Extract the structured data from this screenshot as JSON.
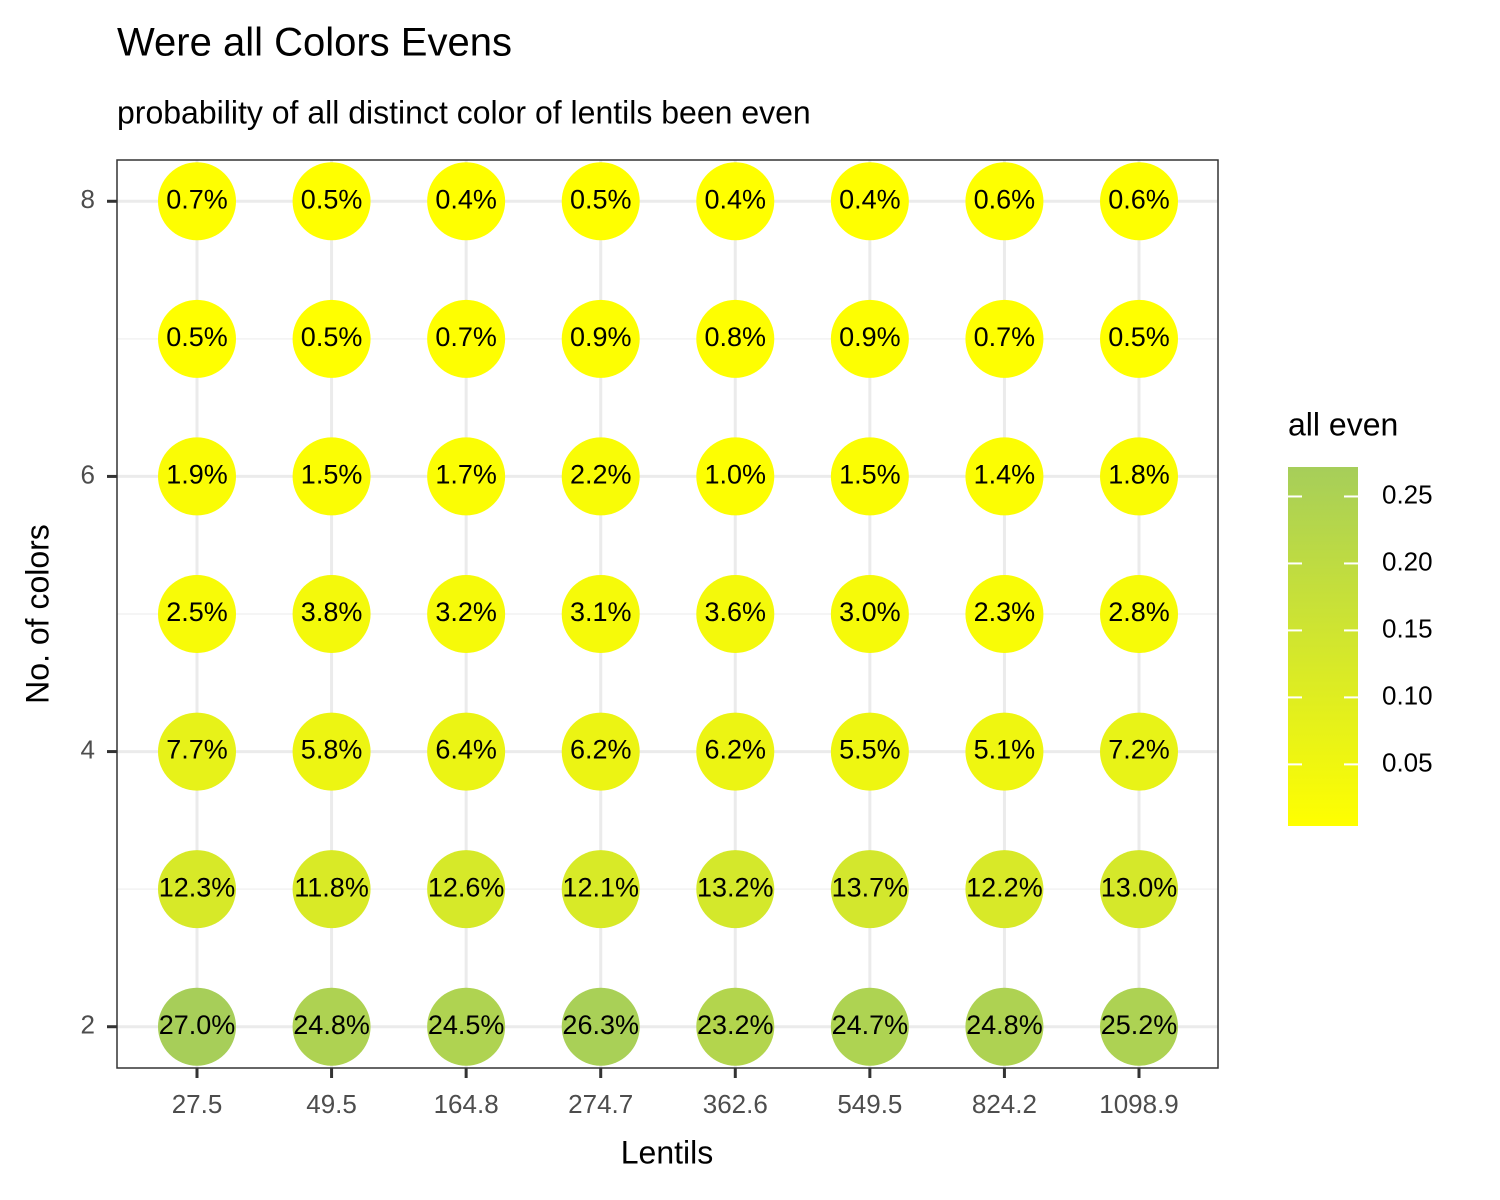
{
  "chart_data": {
    "type": "dot-grid",
    "title": "Were all Colors Evens",
    "subtitle": "probability of all distinct color of lentils been even",
    "x_label": "Lentils",
    "y_label": "No. of colors",
    "categories": [
      "27.5",
      "49.5",
      "164.8",
      "274.7",
      "362.6",
      "549.5",
      "824.2",
      "1098.9"
    ],
    "y": [
      2,
      3,
      4,
      5,
      6,
      7,
      8
    ],
    "ylim": [
      1.7,
      8.3
    ],
    "yticks": [
      2,
      4,
      6,
      8
    ],
    "grid": true,
    "values": [
      [
        0.27,
        0.248,
        0.245,
        0.263,
        0.232,
        0.247,
        0.248,
        0.252
      ],
      [
        0.123,
        0.118,
        0.126,
        0.121,
        0.132,
        0.137,
        0.122,
        0.13
      ],
      [
        0.077,
        0.058,
        0.064,
        0.062,
        0.062,
        0.055,
        0.051,
        0.072
      ],
      [
        0.025,
        0.038,
        0.032,
        0.031,
        0.036,
        0.03,
        0.023,
        0.028
      ],
      [
        0.019,
        0.015,
        0.017,
        0.022,
        0.01,
        0.015,
        0.014,
        0.018
      ],
      [
        0.005,
        0.005,
        0.007,
        0.009,
        0.008,
        0.009,
        0.007,
        0.005
      ],
      [
        0.007,
        0.005,
        0.004,
        0.005,
        0.004,
        0.004,
        0.006,
        0.006
      ]
    ],
    "value_labels": [
      [
        "27.0%",
        "24.8%",
        "24.5%",
        "26.3%",
        "23.2%",
        "24.7%",
        "24.8%",
        "25.2%"
      ],
      [
        "12.3%",
        "11.8%",
        "12.6%",
        "12.1%",
        "13.2%",
        "13.7%",
        "12.2%",
        "13.0%"
      ],
      [
        "7.7%",
        "5.8%",
        "6.4%",
        "6.2%",
        "6.2%",
        "5.5%",
        "5.1%",
        "7.2%"
      ],
      [
        "2.5%",
        "3.8%",
        "3.2%",
        "3.1%",
        "3.6%",
        "3.0%",
        "2.3%",
        "2.8%"
      ],
      [
        "1.9%",
        "1.5%",
        "1.7%",
        "2.2%",
        "1.0%",
        "1.5%",
        "1.4%",
        "1.8%"
      ],
      [
        "0.5%",
        "0.5%",
        "0.7%",
        "0.9%",
        "0.8%",
        "0.9%",
        "0.7%",
        "0.5%"
      ],
      [
        "0.7%",
        "0.5%",
        "0.4%",
        "0.5%",
        "0.4%",
        "0.4%",
        "0.6%",
        "0.6%"
      ]
    ],
    "colorbar": {
      "title": "all even",
      "lim": [
        0.004,
        0.272
      ],
      "ticks": [
        {
          "value": 0.05,
          "label": "0.05"
        },
        {
          "value": 0.1,
          "label": "0.10"
        },
        {
          "value": 0.15,
          "label": "0.15"
        },
        {
          "value": 0.2,
          "label": "0.20"
        },
        {
          "value": 0.25,
          "label": "0.25"
        }
      ],
      "colors": [
        "#ffff00",
        "#a6ce5a"
      ]
    }
  }
}
